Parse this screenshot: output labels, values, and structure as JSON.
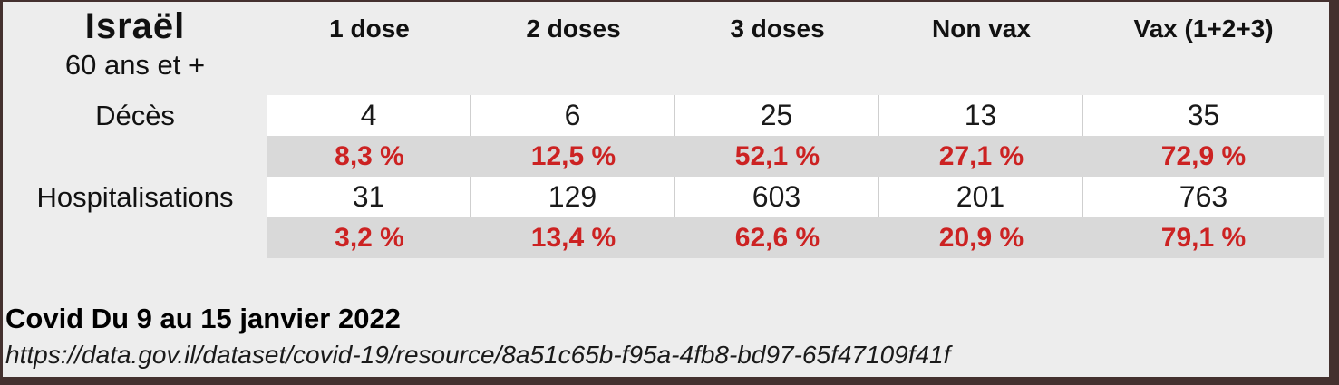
{
  "table": {
    "title": "Israël",
    "subtitle": "60 ans et +",
    "column_headers": [
      "1 dose",
      "2 doses",
      "3 doses",
      "Non vax",
      "Vax (1+2+3)"
    ],
    "rows": [
      {
        "label": "Décès",
        "counts": [
          "4",
          "6",
          "25",
          "13",
          "35"
        ],
        "percents": [
          "8,3 %",
          "12,5 %",
          "52,1 %",
          "27,1 %",
          "72,9 %"
        ]
      },
      {
        "label": "Hospitalisations",
        "counts": [
          "31",
          "129",
          "603",
          "201",
          "763"
        ],
        "percents": [
          "3,2 %",
          "13,4 %",
          "62,6 %",
          "20,9 %",
          "79,1 %"
        ]
      }
    ]
  },
  "footer": {
    "caption": "Covid Du 9 au 15 janvier 2022",
    "source_url": "https://data.gov.il/dataset/covid-19/resource/8a51c65b-f95a-4fb8-bd97-65f47109f41f"
  },
  "colors": {
    "page_bg": "#ededed",
    "count_row_bg": "#ffffff",
    "percent_row_bg": "#d9d9d9",
    "percent_text": "#cc2222",
    "window_edge": "#44312f"
  },
  "chart_data": {
    "type": "table",
    "title": "Israël — 60 ans et +",
    "categories": [
      "1 dose",
      "2 doses",
      "3 doses",
      "Non vax",
      "Vax (1+2+3)"
    ],
    "series": [
      {
        "name": "Décès",
        "values": [
          4,
          6,
          25,
          13,
          35
        ]
      },
      {
        "name": "Décès (%)",
        "values": [
          8.3,
          12.5,
          52.1,
          27.1,
          72.9
        ]
      },
      {
        "name": "Hospitalisations",
        "values": [
          31,
          129,
          603,
          201,
          763
        ]
      },
      {
        "name": "Hospitalisations (%)",
        "values": [
          3.2,
          13.4,
          62.6,
          20.9,
          79.1
        ]
      }
    ],
    "caption": "Covid Du 9 au 15 janvier 2022",
    "source": "https://data.gov.il/dataset/covid-19/resource/8a51c65b-f95a-4fb8-bd97-65f47109f41f"
  }
}
